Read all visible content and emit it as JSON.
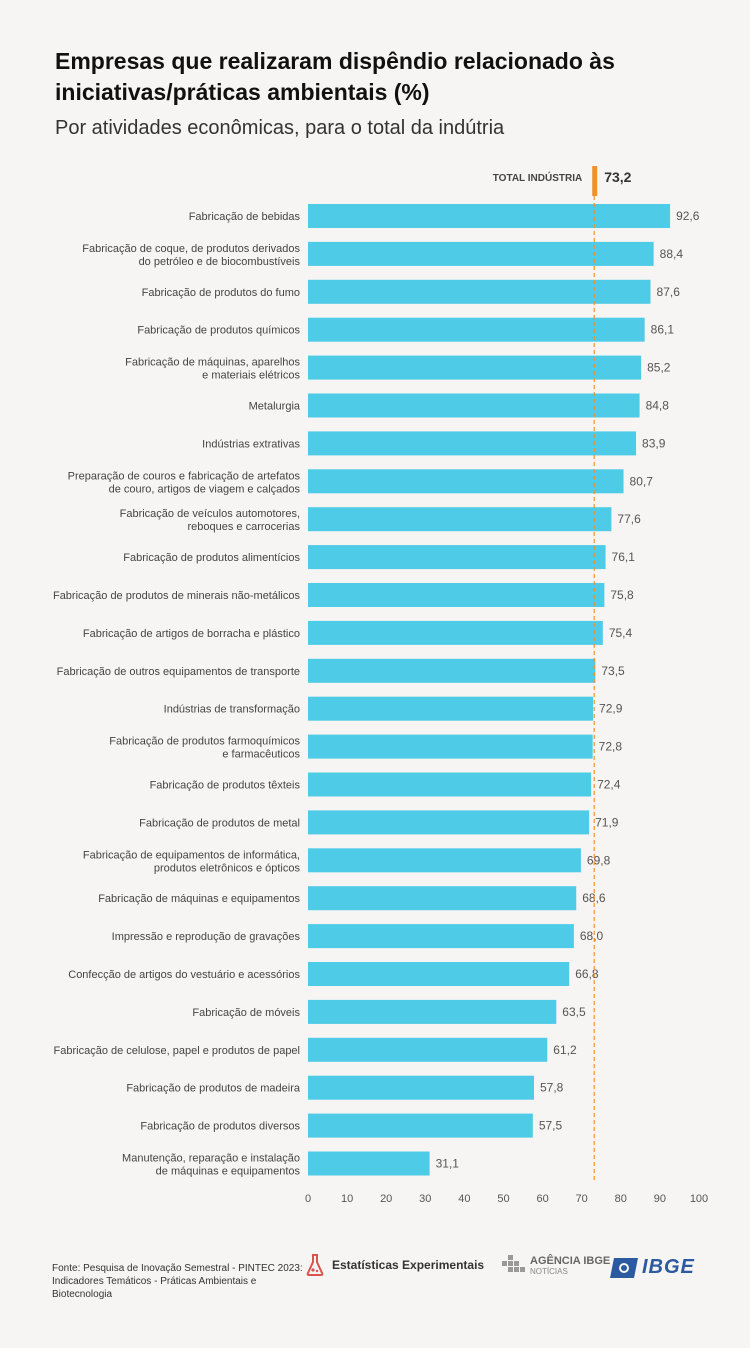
{
  "header": {
    "title": "Empresas que realizaram dispêndio relacionado às iniciativas/práticas ambientais (%)",
    "subtitle": "Por atividades econômicas, para o total da indútria"
  },
  "colors": {
    "bar": "#4ecbe6",
    "reference": "#f0922b",
    "label": "#444444",
    "value": "#555555"
  },
  "chart_data": {
    "type": "bar",
    "orientation": "horizontal",
    "title": "Empresas que realizaram dispêndio relacionado às iniciativas/práticas ambientais (%)",
    "xlim": [
      0,
      100
    ],
    "xticks": [
      0,
      10,
      20,
      30,
      40,
      50,
      60,
      70,
      80,
      90,
      100
    ],
    "grid": false,
    "reference": {
      "label": "TOTAL INDÚSTRIA",
      "value": 73.2,
      "value_label": "73,2"
    },
    "categories": [
      [
        "Fabricação de bebidas"
      ],
      [
        "Fabricação de coque, de produtos derivados",
        "do petróleo e de biocombustíveis"
      ],
      [
        "Fabricação de produtos do fumo"
      ],
      [
        "Fabricação de produtos químicos"
      ],
      [
        "Fabricação de máquinas, aparelhos",
        "e materiais elétricos"
      ],
      [
        "Metalurgia"
      ],
      [
        "Indústrias extrativas"
      ],
      [
        "Preparação de couros e fabricação de artefatos",
        "de couro, artigos de viagem e calçados"
      ],
      [
        "Fabricação de veículos automotores,",
        "reboques e carrocerias"
      ],
      [
        "Fabricação de produtos alimentícios"
      ],
      [
        "Fabricação de produtos de minerais não-metálicos"
      ],
      [
        "Fabricação de artigos de borracha e plástico"
      ],
      [
        "Fabricação de outros equipamentos de transporte"
      ],
      [
        "Indústrias de transformação"
      ],
      [
        "Fabricação de produtos farmoquímicos",
        "e farmacêuticos"
      ],
      [
        "Fabricação de produtos têxteis"
      ],
      [
        "Fabricação de produtos de metal"
      ],
      [
        "Fabricação de equipamentos de informática,",
        "produtos eletrônicos e ópticos"
      ],
      [
        "Fabricação de máquinas e equipamentos"
      ],
      [
        "Impressão e reprodução de gravações"
      ],
      [
        "Confecção de artigos do vestuário e acessórios"
      ],
      [
        "Fabricação de móveis"
      ],
      [
        "Fabricação de celulose, papel e produtos de papel"
      ],
      [
        "Fabricação de produtos de madeira"
      ],
      [
        "Fabricação de produtos diversos"
      ],
      [
        "Manutenção, reparação e instalação",
        "de máquinas e equipamentos"
      ]
    ],
    "values": [
      92.6,
      88.4,
      87.6,
      86.1,
      85.2,
      84.8,
      83.9,
      80.7,
      77.6,
      76.1,
      75.8,
      75.4,
      73.5,
      72.9,
      72.8,
      72.4,
      71.9,
      69.8,
      68.6,
      68.0,
      66.8,
      63.5,
      61.2,
      57.8,
      57.5,
      31.1
    ],
    "value_labels": [
      "92,6",
      "88,4",
      "87,6",
      "86,1",
      "85,2",
      "84,8",
      "83,9",
      "80,7",
      "77,6",
      "76,1",
      "75,8",
      "75,4",
      "73,5",
      "72,9",
      "72,8",
      "72,4",
      "71,9",
      "69,8",
      "68,6",
      "68,0",
      "66,8",
      "63,5",
      "61,2",
      "57,8",
      "57,5",
      "31,1"
    ]
  },
  "footer": {
    "source": "Fonte: Pesquisa de Inovação Semestral - PINTEC 2023: Indicadores Temáticos - Práticas Ambientais e Biotecnologia",
    "logo_experimentais": "Estatísticas Experimentais",
    "logo_agencia": "AGÊNCIA IBGE",
    "logo_agencia_sub": "NOTÍCIAS",
    "logo_ibge": "IBGE"
  }
}
